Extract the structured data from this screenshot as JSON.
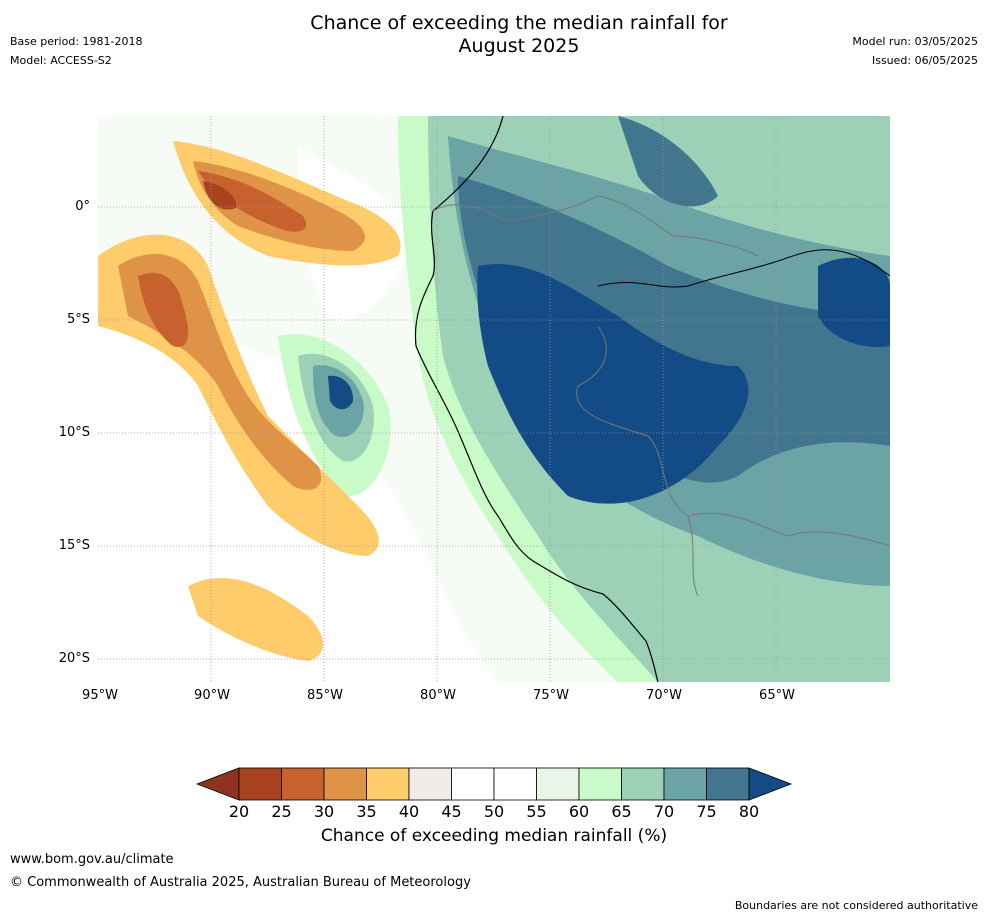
{
  "header": {
    "title_line1": "Chance of exceeding the median rainfall for",
    "title_line2": "August 2025",
    "base_period": "Base period: 1981-2018",
    "model": "Model: ACCESS-S2",
    "model_run": "Model run: 03/05/2025",
    "issued": "Issued: 06/05/2025"
  },
  "axes": {
    "lat_labels": [
      "0°",
      "5°S",
      "10°S",
      "15°S",
      "20°S"
    ],
    "lon_labels": [
      "95°W",
      "90°W",
      "85°W",
      "80°W",
      "75°W",
      "70°W",
      "65°W"
    ]
  },
  "colorbar": {
    "title": "Chance of exceeding median rainfall (%)",
    "ticks": [
      "20",
      "25",
      "30",
      "35",
      "40",
      "45",
      "50",
      "55",
      "60",
      "65",
      "70",
      "75",
      "80"
    ],
    "colors": [
      "#a9431f",
      "#c7622e",
      "#df9347",
      "#fecc6a",
      "#efebe6",
      "#ffffff",
      "#ffffff",
      "#e9f5e9",
      "#c8fbc8",
      "#9cd1b8",
      "#6ca3a4",
      "#42768f"
    ],
    "under_color": "#8c3420",
    "over_color": "#134b87"
  },
  "footer": {
    "url": "www.bom.gov.au/climate",
    "copyright": "© Commonwealth of Australia 2025, Australian Bureau of Meteorology",
    "disclaimer": "Boundaries are not considered authoritative"
  }
}
